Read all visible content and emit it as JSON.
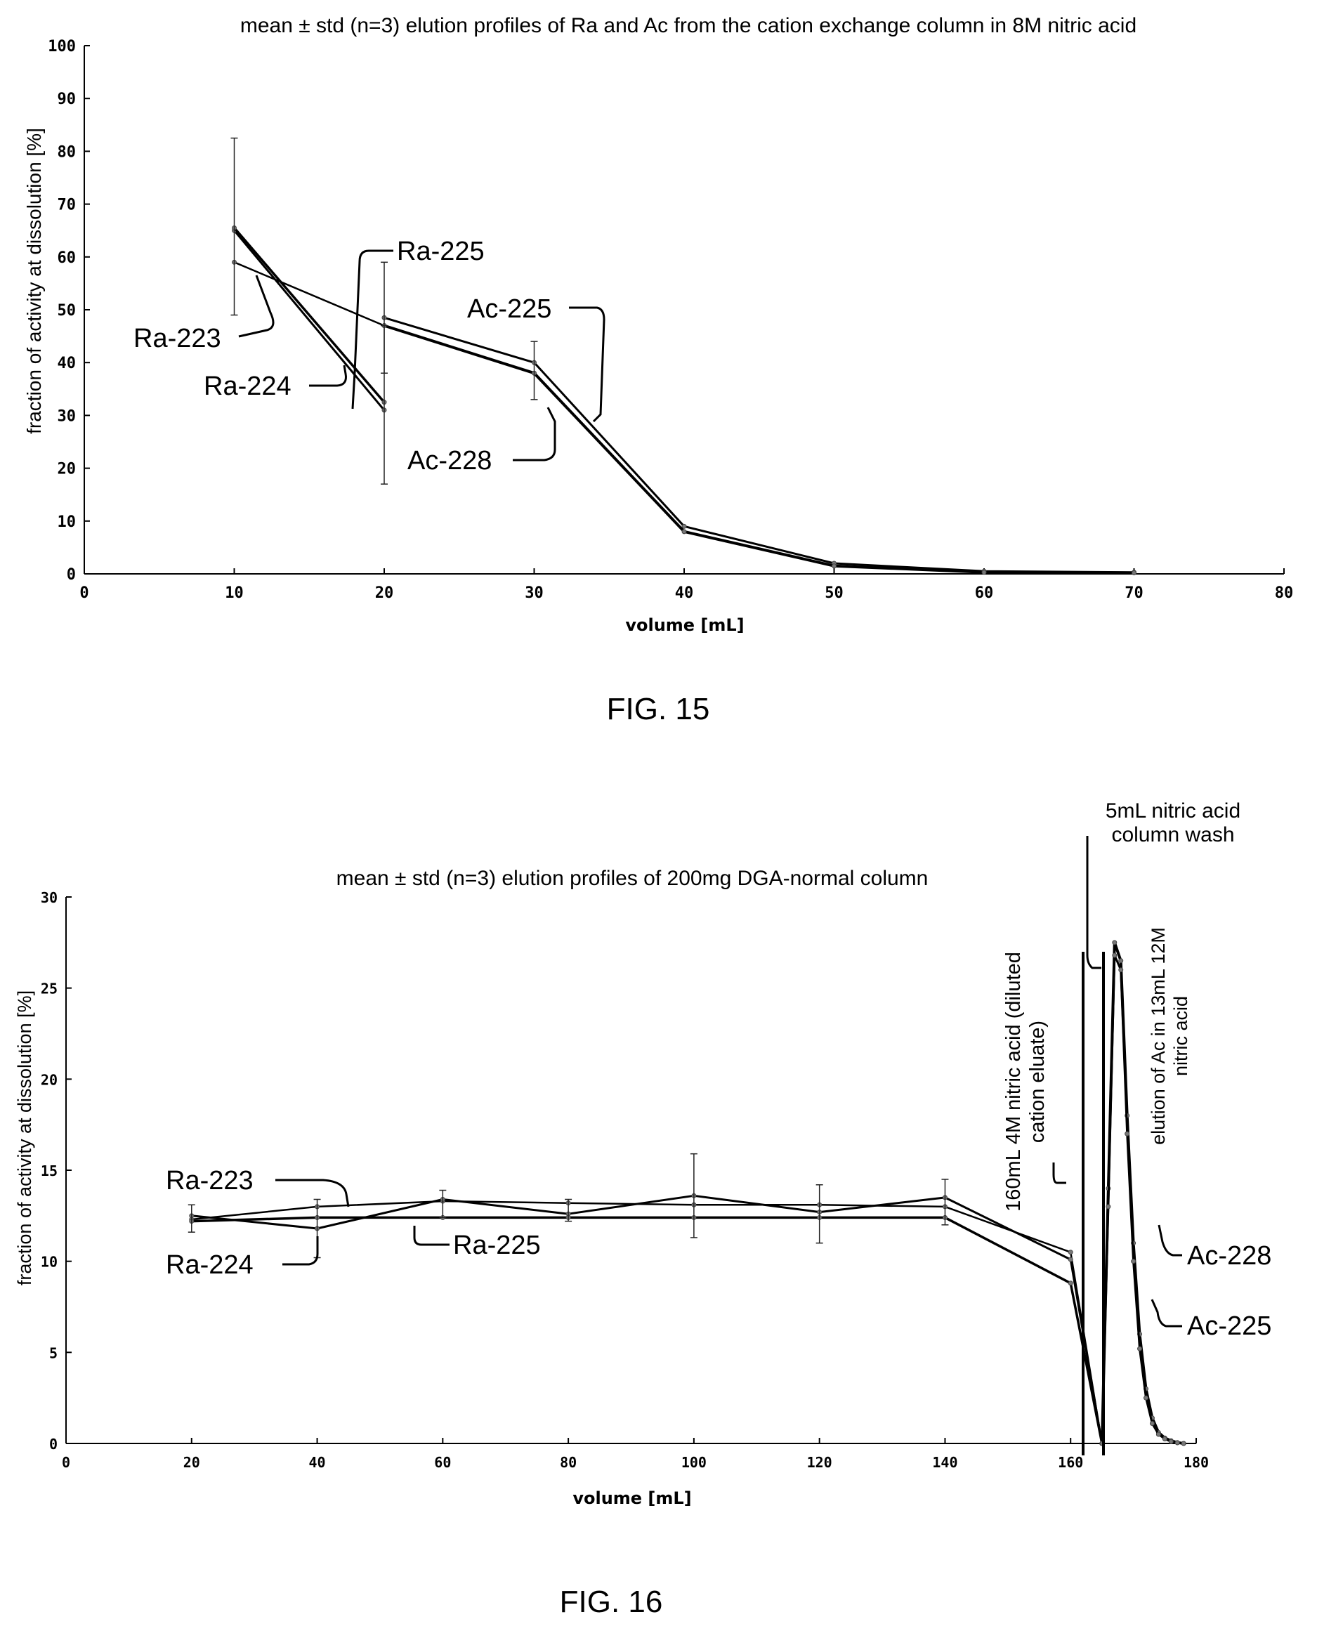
{
  "chart_data": [
    {
      "type": "line",
      "title": "mean ± std (n=3) elution profiles of Ra and Ac from the cation exchange column in 8M nitric acid",
      "xlabel": "volume [mL]",
      "ylabel": "fraction of activity at dissolution [%]",
      "xlim": [
        0,
        80
      ],
      "ylim": [
        0,
        100
      ],
      "xticks": [
        "0",
        "10",
        "20",
        "30",
        "40",
        "50",
        "60",
        "70",
        "80"
      ],
      "yticks": [
        "0",
        "10",
        "20",
        "30",
        "40",
        "50",
        "60",
        "70",
        "80",
        "90",
        "100"
      ],
      "grid": false,
      "series": [
        {
          "name": "Ra-223",
          "x": [
            10,
            20
          ],
          "values": [
            59,
            47
          ]
        },
        {
          "name": "Ra-224",
          "x": [
            10,
            20
          ],
          "values": [
            65,
            31
          ]
        },
        {
          "name": "Ra-225",
          "x": [
            10,
            20
          ],
          "values": [
            65.5,
            32.5
          ]
        },
        {
          "name": "Ac-225",
          "x": [
            20,
            30,
            40,
            50,
            60,
            70
          ],
          "values": [
            48.5,
            40,
            9,
            2,
            0.5,
            0.3
          ]
        },
        {
          "name": "Ac-228",
          "x": [
            20,
            30,
            40,
            50,
            60,
            70
          ],
          "values": [
            47,
            38,
            8,
            1.5,
            0.3,
            0.2
          ]
        }
      ],
      "errorbars": [
        {
          "x": 10,
          "low": 49,
          "high": 82.5
        },
        {
          "x": 20,
          "low": 17,
          "high": 47
        },
        {
          "x": 20,
          "low": 38,
          "high": 59
        },
        {
          "x": 30,
          "low": 33,
          "high": 44
        }
      ],
      "annotations": [
        "Ra-225",
        "Ra-223",
        "Ra-224",
        "Ac-225",
        "Ac-228"
      ]
    },
    {
      "type": "line",
      "title": "mean ± std (n=3) elution profiles of 200mg DGA-normal column",
      "xlabel": "volume [mL]",
      "ylabel": "fraction of activity at dissolution [%]",
      "xlim": [
        0,
        180
      ],
      "ylim": [
        0,
        30
      ],
      "xticks": [
        "0",
        "20",
        "40",
        "60",
        "80",
        "100",
        "120",
        "140",
        "160",
        "180"
      ],
      "yticks": [
        "0",
        "5",
        "10",
        "15",
        "20",
        "25",
        "30"
      ],
      "grid": false,
      "series": [
        {
          "name": "Ra-223",
          "x": [
            20,
            40,
            60,
            80,
            100,
            120,
            140,
            160,
            165
          ],
          "values": [
            12.3,
            13.0,
            13.3,
            13.2,
            13.1,
            13.1,
            13.0,
            10.5,
            0
          ]
        },
        {
          "name": "Ra-224",
          "x": [
            20,
            40,
            60,
            80,
            100,
            120,
            140,
            160,
            165
          ],
          "values": [
            12.5,
            11.8,
            13.4,
            12.6,
            13.6,
            12.7,
            13.5,
            10.1,
            0
          ]
        },
        {
          "name": "Ra-225",
          "x": [
            20,
            40,
            60,
            80,
            100,
            120,
            140,
            160,
            165
          ],
          "values": [
            12.2,
            12.4,
            12.4,
            12.4,
            12.4,
            12.4,
            12.4,
            8.8,
            0
          ]
        },
        {
          "name": "Ac-228",
          "x": [
            165,
            166,
            167,
            168,
            169,
            170,
            171,
            172,
            173,
            174,
            175,
            176,
            177,
            178
          ],
          "values": [
            0,
            14,
            27.5,
            26.5,
            18,
            11,
            6,
            3,
            1.4,
            0.6,
            0.3,
            0.15,
            0.05,
            0
          ]
        },
        {
          "name": "Ac-225",
          "x": [
            165,
            166,
            167,
            168,
            169,
            170,
            171,
            172,
            173,
            174,
            175,
            176,
            177,
            178
          ],
          "values": [
            0,
            13,
            26.8,
            26,
            17,
            10,
            5.2,
            2.5,
            1.1,
            0.5,
            0.25,
            0.1,
            0.04,
            0
          ]
        }
      ],
      "errorbars": [
        {
          "x": 20,
          "low": 11.6,
          "high": 13.1
        },
        {
          "x": 40,
          "low": 10.2,
          "high": 13.4
        },
        {
          "x": 60,
          "low": 12.4,
          "high": 13.9
        },
        {
          "x": 80,
          "low": 12.2,
          "high": 13.4
        },
        {
          "x": 100,
          "low": 11.3,
          "high": 15.9
        },
        {
          "x": 120,
          "low": 11.0,
          "high": 14.2
        },
        {
          "x": 140,
          "low": 12.0,
          "high": 14.5
        }
      ],
      "annotations": [
        "Ra-223",
        "Ra-224",
        "Ra-225",
        "Ac-228",
        "Ac-225",
        "5mL nitric acid",
        "column wash",
        "160mL 4M nitric acid (diluted",
        "cation eluate)",
        "elution of Ac in 13mL 12M",
        "nitric acid"
      ]
    }
  ],
  "captions": {
    "fig15": "FIG. 15",
    "fig16": "FIG. 16"
  }
}
